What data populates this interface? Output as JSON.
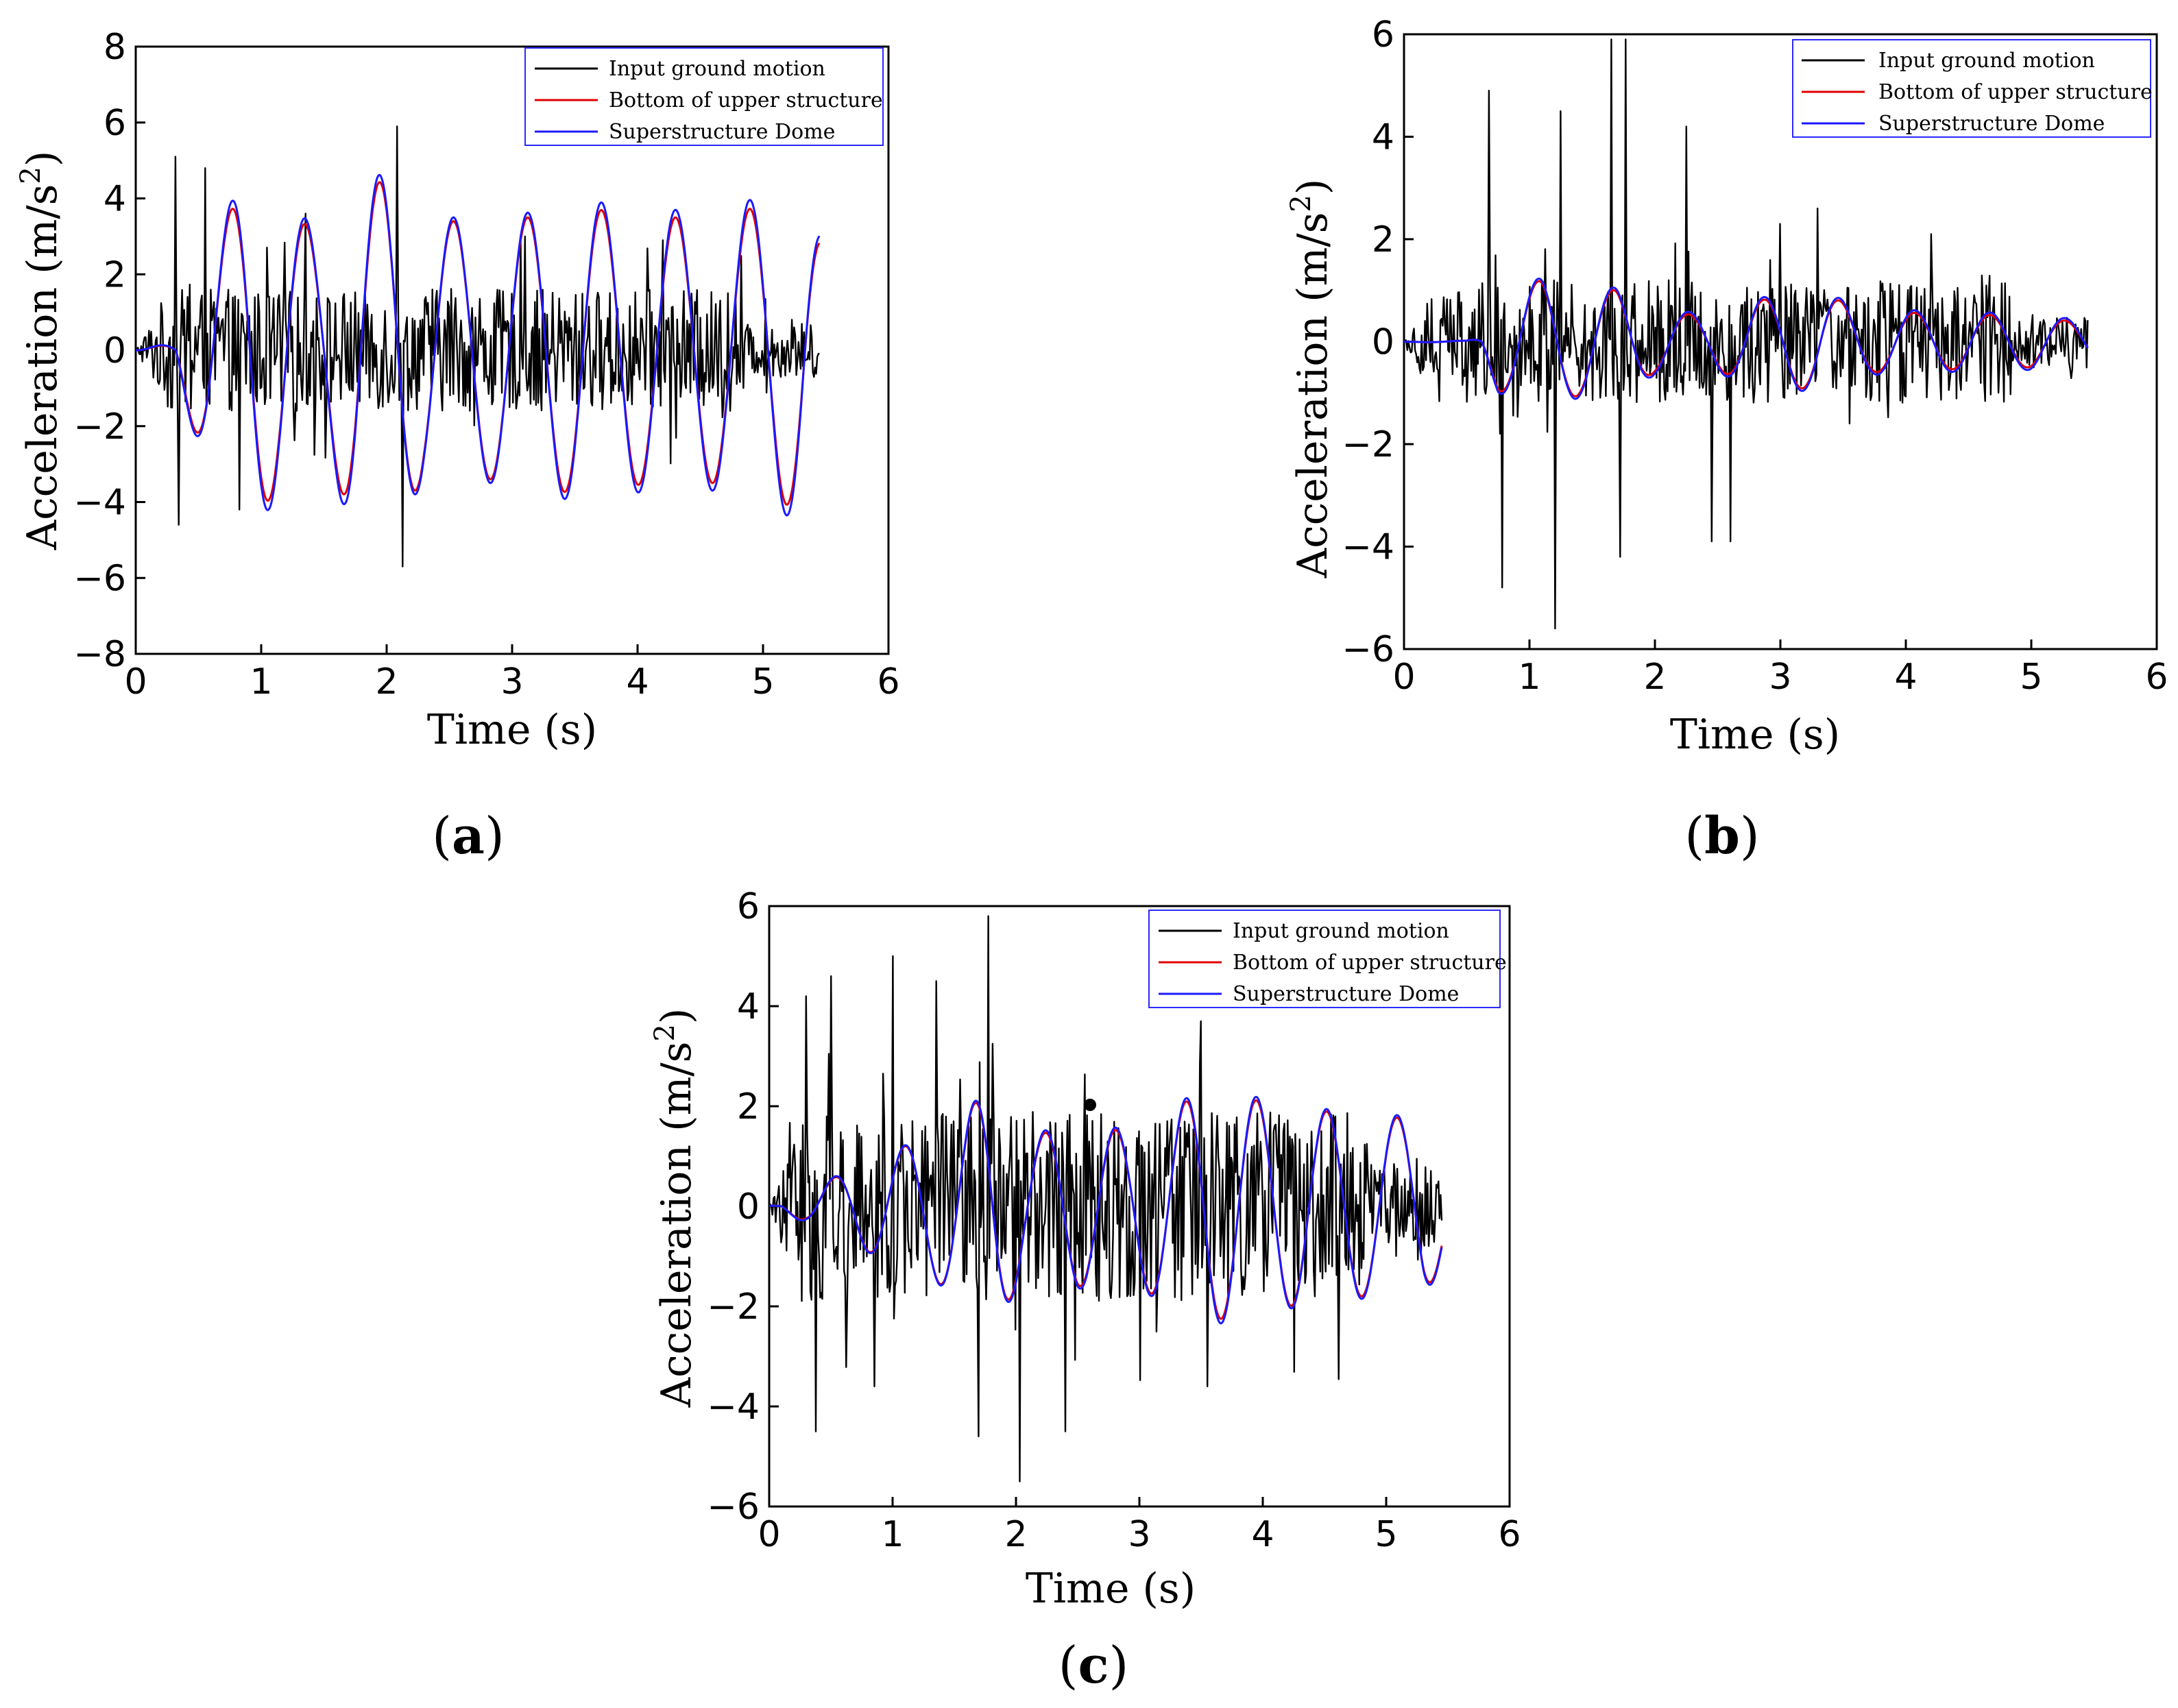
{
  "chart_data": [
    {
      "id": "a",
      "type": "line",
      "panel_label": "a",
      "xlabel": "Time (s)",
      "ylabel_main": "Acceleration (m/s",
      "ylabel_sup": "2",
      "ylabel_close": ")",
      "xlim": [
        0,
        6
      ],
      "ylim": [
        -8,
        8
      ],
      "xticks": [
        0,
        1,
        2,
        3,
        4,
        5,
        6
      ],
      "yticks": [
        -8,
        -6,
        -4,
        -2,
        0,
        2,
        4,
        6,
        8
      ],
      "duration": 5.45,
      "legend_position": "top-right",
      "series": [
        {
          "name": "Input ground motion",
          "color": "#000000",
          "kind": "noise",
          "amp": 1.6,
          "peaks": [
            [
              0.32,
              5.1
            ],
            [
              0.34,
              -4.6
            ],
            [
              0.55,
              4.8
            ],
            [
              0.83,
              -4.2
            ],
            [
              2.08,
              5.9
            ],
            [
              2.13,
              -5.7
            ],
            [
              1.35,
              3.6
            ],
            [
              3.1,
              3.0
            ],
            [
              4.2,
              2.9
            ]
          ]
        },
        {
          "name": "Bottom of upper structure",
          "color": "#e00000",
          "kind": "sine",
          "period": 0.59,
          "phase": 0.32,
          "env": [
            [
              0,
              0.05
            ],
            [
              0.3,
              0.9
            ],
            [
              0.6,
              3.0
            ],
            [
              0.9,
              4.3
            ],
            [
              1.5,
              3.0
            ],
            [
              1.75,
              4.3
            ],
            [
              2.05,
              4.5
            ],
            [
              2.3,
              3.4
            ],
            [
              3.0,
              3.4
            ],
            [
              3.5,
              3.8
            ],
            [
              4.1,
              3.5
            ],
            [
              4.7,
              3.5
            ],
            [
              5.3,
              4.2
            ],
            [
              5.45,
              3.0
            ]
          ]
        },
        {
          "name": "Superstructure Dome",
          "color": "#1a1aff",
          "kind": "sine",
          "period": 0.59,
          "phase": 0.32,
          "env": [
            [
              0,
              0.05
            ],
            [
              0.3,
              1.0
            ],
            [
              0.6,
              3.1
            ],
            [
              0.9,
              4.6
            ],
            [
              1.5,
              3.1
            ],
            [
              1.75,
              4.65
            ],
            [
              2.05,
              4.6
            ],
            [
              2.3,
              3.5
            ],
            [
              3.0,
              3.5
            ],
            [
              3.5,
              4.0
            ],
            [
              4.1,
              3.7
            ],
            [
              4.7,
              3.7
            ],
            [
              5.3,
              4.5
            ],
            [
              5.45,
              3.2
            ]
          ]
        }
      ]
    },
    {
      "id": "b",
      "type": "line",
      "panel_label": "b",
      "xlabel": "Time (s)",
      "ylabel_main": "Acceleration (m/s",
      "ylabel_sup": "2",
      "ylabel_close": ")",
      "xlim": [
        0,
        6
      ],
      "ylim": [
        -6,
        6
      ],
      "xticks": [
        0,
        1,
        2,
        3,
        4,
        5,
        6
      ],
      "yticks": [
        -6,
        -4,
        -2,
        0,
        2,
        4,
        6
      ],
      "duration": 5.45,
      "legend_position": "top-right",
      "series": [
        {
          "name": "Input ground motion",
          "color": "#000000",
          "kind": "noise",
          "amp": 1.2,
          "peaks": [
            [
              0.68,
              4.9
            ],
            [
              0.78,
              -4.8
            ],
            [
              1.2,
              -5.6
            ],
            [
              1.25,
              4.5
            ],
            [
              1.65,
              5.9
            ],
            [
              1.77,
              5.9
            ],
            [
              1.72,
              -4.2
            ],
            [
              2.25,
              4.2
            ],
            [
              2.45,
              -3.9
            ],
            [
              2.6,
              -3.9
            ],
            [
              3.0,
              2.3
            ],
            [
              3.3,
              2.6
            ],
            [
              4.2,
              2.1
            ]
          ]
        },
        {
          "name": "Bottom of upper structure",
          "color": "#e00000",
          "kind": "sine",
          "period": 0.6,
          "phase": 0.62,
          "env": [
            [
              0,
              0.02
            ],
            [
              0.5,
              0.1
            ],
            [
              0.75,
              0.95
            ],
            [
              1.1,
              1.2
            ],
            [
              1.4,
              1.05
            ],
            [
              1.7,
              1.0
            ],
            [
              2.0,
              0.6
            ],
            [
              2.4,
              0.5
            ],
            [
              2.8,
              0.8
            ],
            [
              3.3,
              0.95
            ],
            [
              3.7,
              0.6
            ],
            [
              4.2,
              0.55
            ],
            [
              5.0,
              0.5
            ],
            [
              5.45,
              0.35
            ]
          ]
        },
        {
          "name": "Superstructure Dome",
          "color": "#1a1aff",
          "kind": "sine",
          "period": 0.6,
          "phase": 0.62,
          "env": [
            [
              0,
              0.02
            ],
            [
              0.5,
              0.1
            ],
            [
              0.75,
              1.0
            ],
            [
              1.1,
              1.25
            ],
            [
              1.4,
              1.1
            ],
            [
              1.7,
              1.05
            ],
            [
              2.0,
              0.65
            ],
            [
              2.4,
              0.55
            ],
            [
              2.8,
              0.85
            ],
            [
              3.3,
              1.0
            ],
            [
              3.7,
              0.65
            ],
            [
              4.2,
              0.6
            ],
            [
              5.0,
              0.55
            ],
            [
              5.45,
              0.4
            ]
          ]
        }
      ]
    },
    {
      "id": "c",
      "type": "line",
      "panel_label": "c",
      "xlabel": "Time (s)",
      "ylabel_main": "Acceleration (m/s",
      "ylabel_sup": "2",
      "ylabel_close": ")",
      "xlim": [
        0,
        6
      ],
      "ylim": [
        -6,
        6
      ],
      "xticks": [
        0,
        1,
        2,
        3,
        4,
        5,
        6
      ],
      "yticks": [
        -6,
        -4,
        -2,
        0,
        2,
        4,
        6
      ],
      "duration": 5.45,
      "legend_position": "top-right",
      "series": [
        {
          "name": "Input ground motion",
          "color": "#000000",
          "kind": "noise",
          "amp": 1.9,
          "peaks": [
            [
              0.3,
              4.2
            ],
            [
              0.38,
              -4.5
            ],
            [
              0.5,
              4.6
            ],
            [
              1.0,
              5.0
            ],
            [
              1.35,
              4.5
            ],
            [
              1.78,
              5.8
            ],
            [
              2.03,
              -5.5
            ],
            [
              2.4,
              -4.5
            ],
            [
              1.7,
              -4.6
            ],
            [
              3.5,
              3.7
            ],
            [
              3.55,
              -3.6
            ],
            [
              0.85,
              -3.6
            ]
          ]
        },
        {
          "name": "Bottom of upper structure",
          "color": "#e00000",
          "kind": "sine",
          "period": 0.57,
          "phase": 0.1,
          "env": [
            [
              0,
              0.05
            ],
            [
              0.3,
              0.3
            ],
            [
              0.8,
              0.9
            ],
            [
              1.3,
              1.4
            ],
            [
              1.8,
              2.3
            ],
            [
              2.1,
              1.4
            ],
            [
              2.5,
              1.6
            ],
            [
              2.9,
              1.5
            ],
            [
              3.3,
              2.0
            ],
            [
              3.55,
              2.3
            ],
            [
              4.2,
              2.0
            ],
            [
              4.8,
              1.8
            ],
            [
              5.3,
              1.75
            ],
            [
              5.45,
              1.2
            ]
          ]
        },
        {
          "name": "Superstructure Dome",
          "color": "#1a1aff",
          "kind": "sine",
          "period": 0.57,
          "phase": 0.1,
          "env": [
            [
              0,
              0.05
            ],
            [
              0.3,
              0.32
            ],
            [
              0.8,
              0.92
            ],
            [
              1.3,
              1.42
            ],
            [
              1.8,
              2.35
            ],
            [
              2.1,
              1.45
            ],
            [
              2.5,
              1.65
            ],
            [
              2.9,
              1.55
            ],
            [
              3.3,
              2.05
            ],
            [
              3.55,
              2.4
            ],
            [
              4.2,
              2.05
            ],
            [
              4.8,
              1.85
            ],
            [
              5.3,
              1.8
            ],
            [
              5.45,
              1.25
            ]
          ]
        }
      ]
    }
  ]
}
